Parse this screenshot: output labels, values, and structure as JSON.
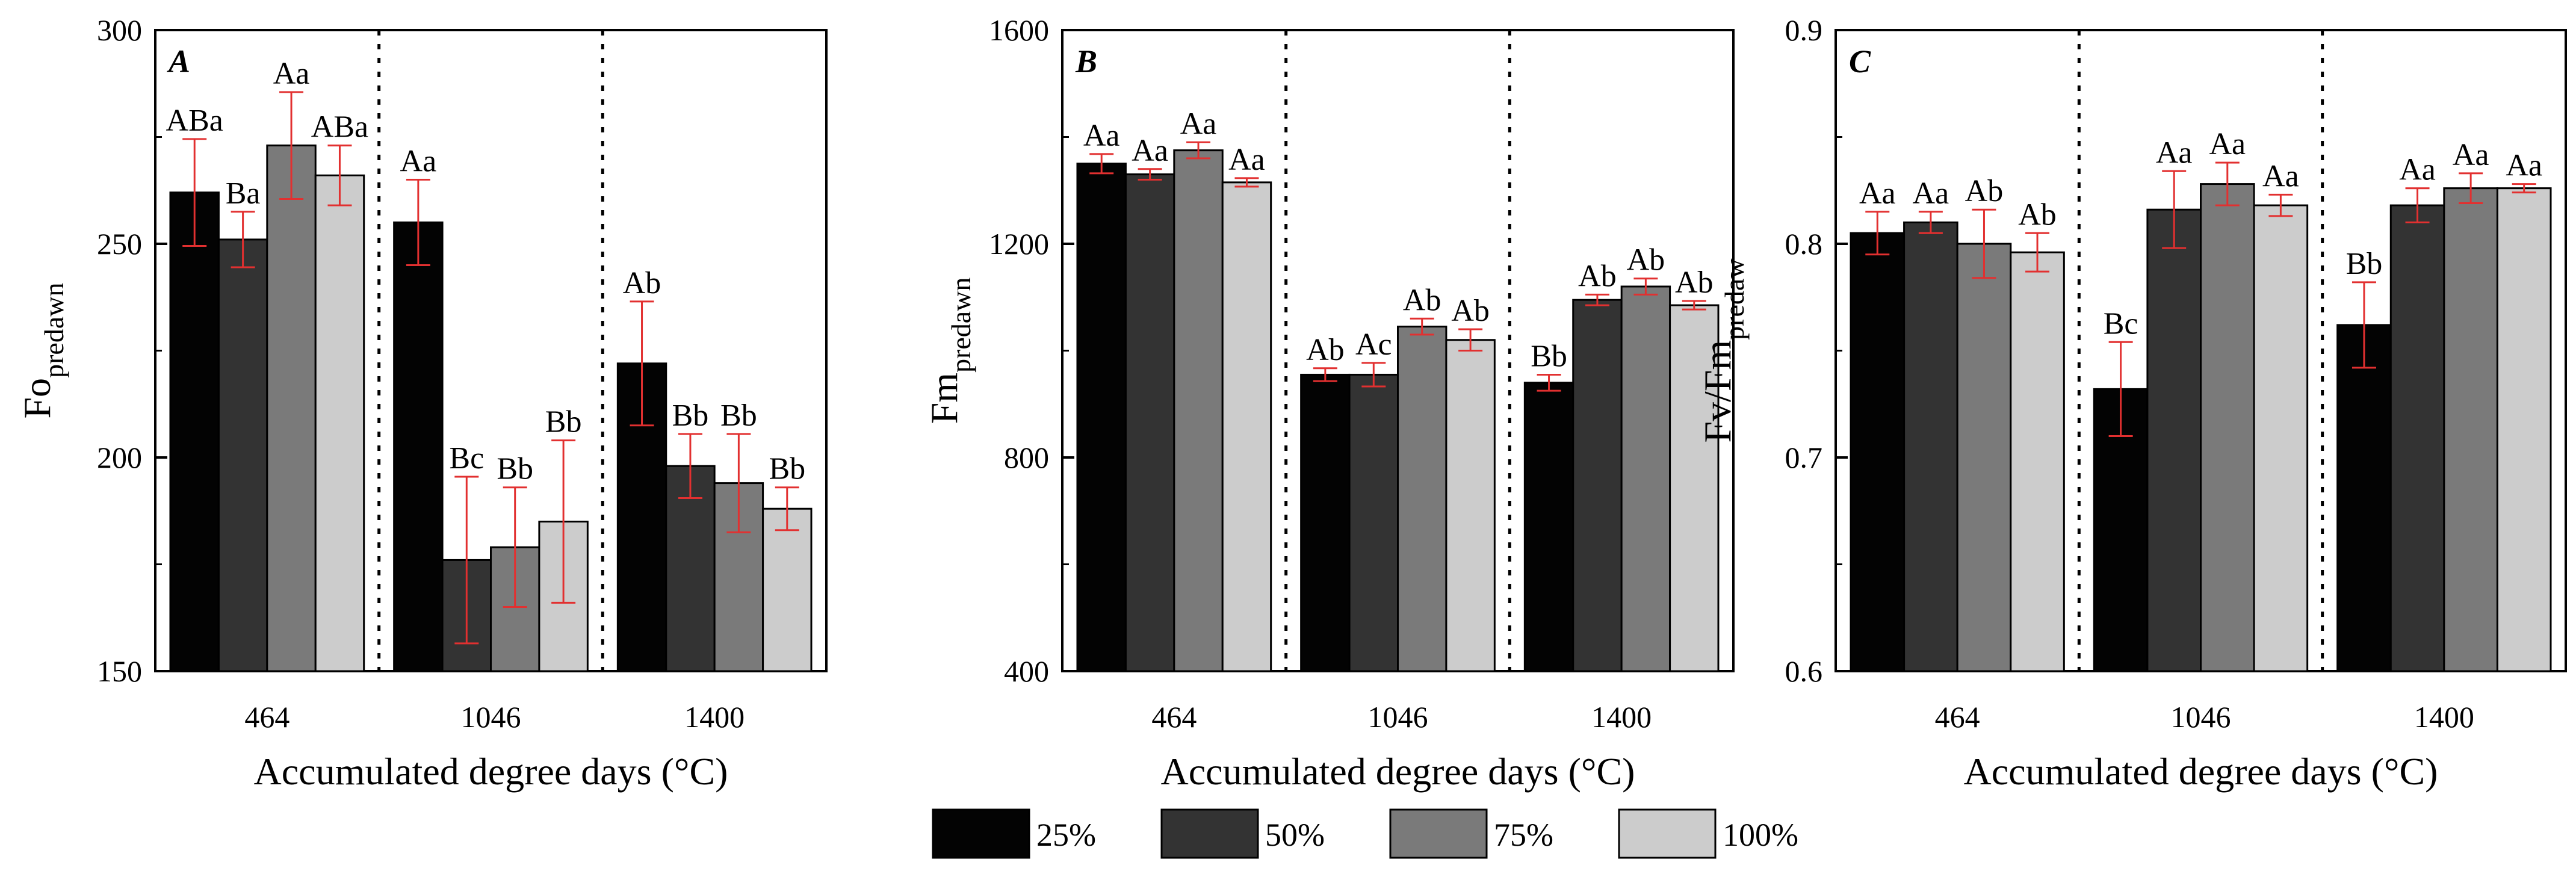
{
  "colors": {
    "series": [
      "#030303",
      "#333333",
      "#7a7a7a",
      "#cccccc"
    ],
    "error_bar": "#e23030",
    "axis": "#000000"
  },
  "legend": {
    "placement": "bottom-center",
    "items": [
      "25%",
      "50%",
      "75%",
      "100%"
    ]
  },
  "chart_data": [
    {
      "type": "bar",
      "panel": "A",
      "categories": [
        "464",
        "1046",
        "1400"
      ],
      "xlabel": "Accumulated degree days (°C)",
      "ylabel_base": "Fo",
      "ylabel_sub": "predawn",
      "ylim": [
        150,
        300
      ],
      "yticks": [
        150,
        200,
        250,
        300
      ],
      "ytick_labels": [
        "150",
        "200",
        "250",
        "300"
      ],
      "series": [
        {
          "name": "25%",
          "values": [
            262,
            255,
            222
          ],
          "errors": [
            12.5,
            10,
            14.5
          ],
          "labels": [
            "ABa",
            "Aa",
            "Ab"
          ]
        },
        {
          "name": "50%",
          "values": [
            251,
            176,
            198
          ],
          "errors": [
            6.5,
            19.5,
            7.5
          ],
          "labels": [
            "Ba",
            "Bc",
            "Bb"
          ]
        },
        {
          "name": "75%",
          "values": [
            273,
            179,
            194
          ],
          "errors": [
            12.5,
            14,
            11.5
          ],
          "labels": [
            "Aa",
            "Bb",
            "Bb"
          ]
        },
        {
          "name": "100%",
          "values": [
            266,
            185,
            188
          ],
          "errors": [
            7,
            19,
            5
          ],
          "labels": [
            "ABa",
            "Bb",
            "Bb"
          ]
        }
      ]
    },
    {
      "type": "bar",
      "panel": "B",
      "categories": [
        "464",
        "1046",
        "1400"
      ],
      "xlabel": "Accumulated degree days (°C)",
      "ylabel_base": "Fm",
      "ylabel_sub": "predawn",
      "ylim": [
        400,
        1600
      ],
      "yticks": [
        400,
        800,
        1200,
        1600
      ],
      "ytick_labels": [
        "400",
        "800",
        "1200",
        "1600"
      ],
      "series": [
        {
          "name": "25%",
          "values": [
            1350,
            955,
            940
          ],
          "errors": [
            18,
            12,
            15
          ],
          "labels": [
            "Aa",
            "Ab",
            "Bb"
          ]
        },
        {
          "name": "50%",
          "values": [
            1330,
            955,
            1095
          ],
          "errors": [
            10,
            22,
            10
          ],
          "labels": [
            "Aa",
            "Ac",
            "Ab"
          ]
        },
        {
          "name": "75%",
          "values": [
            1375,
            1045,
            1120
          ],
          "errors": [
            15,
            15,
            15
          ],
          "labels": [
            "Aa",
            "Ab",
            "Ab"
          ]
        },
        {
          "name": "100%",
          "values": [
            1315,
            1020,
            1085
          ],
          "errors": [
            8,
            20,
            8
          ],
          "labels": [
            "Aa",
            "Ab",
            "Ab"
          ]
        }
      ]
    },
    {
      "type": "bar",
      "panel": "C",
      "categories": [
        "464",
        "1046",
        "1400"
      ],
      "xlabel": "Accumulated degree days (°C)",
      "ylabel_base": "Fv/Fm",
      "ylabel_sub": "predaw",
      "ylim": [
        0.6,
        0.9
      ],
      "yticks": [
        0.6,
        0.7,
        0.8,
        0.9
      ],
      "ytick_labels": [
        "0.6",
        "0.7",
        "0.8",
        "0.9"
      ],
      "series": [
        {
          "name": "25%",
          "values": [
            0.805,
            0.732,
            0.762
          ],
          "errors": [
            0.01,
            0.022,
            0.02
          ],
          "labels": [
            "Aa",
            "Bc",
            "Bb"
          ]
        },
        {
          "name": "50%",
          "values": [
            0.81,
            0.816,
            0.818
          ],
          "errors": [
            0.005,
            0.018,
            0.008
          ],
          "labels": [
            "Aa",
            "Aa",
            "Aa"
          ]
        },
        {
          "name": "75%",
          "values": [
            0.8,
            0.828,
            0.826
          ],
          "errors": [
            0.016,
            0.01,
            0.007
          ],
          "labels": [
            "Ab",
            "Aa",
            "Aa"
          ]
        },
        {
          "name": "100%",
          "values": [
            0.796,
            0.818,
            0.826
          ],
          "errors": [
            0.009,
            0.005,
            0.002
          ],
          "labels": [
            "Ab",
            "Aa",
            "Aa"
          ]
        }
      ]
    }
  ]
}
